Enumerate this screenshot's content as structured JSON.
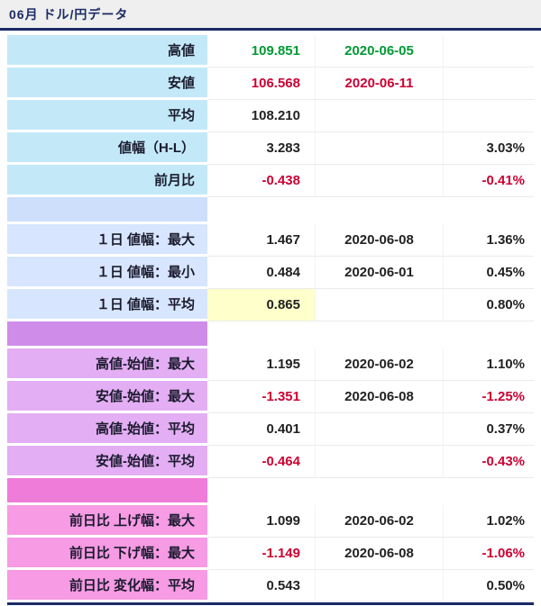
{
  "header": {
    "title": "06月 ドル/円データ"
  },
  "palette": {
    "green": "#009933",
    "red": "#cc0033",
    "navy": "#1b2a66",
    "highlight_yellow": "#ffffcc",
    "header_bg": "#efefef"
  },
  "table": {
    "sections": [
      {
        "label_bg": "#c3e9f8",
        "rows": [
          {
            "label": "高値",
            "value": "109.851",
            "value_color": "green",
            "date": "2020-06-05",
            "date_color": "green",
            "pct": ""
          },
          {
            "label": "安値",
            "value": "106.568",
            "value_color": "red",
            "date": "2020-06-11",
            "date_color": "red",
            "pct": ""
          },
          {
            "label": "平均",
            "value": "108.210",
            "date": "",
            "pct": ""
          },
          {
            "label": "値幅（H-L）",
            "value": "3.283",
            "date": "",
            "pct": "3.03%"
          },
          {
            "label": "前月比",
            "value": "-0.438",
            "value_color": "red",
            "date": "",
            "pct": "-0.41%",
            "pct_color": "red"
          }
        ]
      },
      {
        "spacer_bg": "#cddffb",
        "label_bg": "#d7e6fe",
        "rows": [
          {
            "label": "１日 値幅：最大",
            "value": "1.467",
            "date": "2020-06-08",
            "pct": "1.36%"
          },
          {
            "label": "１日 値幅：最小",
            "value": "0.484",
            "date": "2020-06-01",
            "pct": "0.45%"
          },
          {
            "label": "１日 値幅：平均",
            "value": "0.865",
            "value_highlight": true,
            "date": "",
            "pct": "0.80%"
          }
        ]
      },
      {
        "spacer_bg": "#cf8de9",
        "label_bg": "#e3aef3",
        "rows": [
          {
            "label": "高値-始値：最大",
            "value": "1.195",
            "date": "2020-06-02",
            "pct": "1.10%"
          },
          {
            "label": "安値-始値：最大",
            "value": "-1.351",
            "value_color": "red",
            "date": "2020-06-08",
            "pct": "-1.25%",
            "pct_color": "red"
          },
          {
            "label": "高値-始値：平均",
            "value": "0.401",
            "date": "",
            "pct": "0.37%"
          },
          {
            "label": "安値-始値：平均",
            "value": "-0.464",
            "value_color": "red",
            "date": "",
            "pct": "-0.43%",
            "pct_color": "red"
          }
        ]
      },
      {
        "spacer_bg": "#f07cda",
        "label_bg": "#f69be4",
        "rows": [
          {
            "label": "前日比 上げ幅：最大",
            "value": "1.099",
            "date": "2020-06-02",
            "pct": "1.02%"
          },
          {
            "label": "前日比 下げ幅：最大",
            "value": "-1.149",
            "value_color": "red",
            "date": "2020-06-08",
            "pct": "-1.06%",
            "pct_color": "red"
          },
          {
            "label": "前日比 変化幅：平均",
            "value": "0.543",
            "date": "",
            "pct": "0.50%"
          }
        ]
      }
    ]
  },
  "chart_data": {
    "type": "table",
    "title": "06月 ドル/円データ",
    "rows": [
      [
        "高値",
        109.851,
        "2020-06-05",
        null
      ],
      [
        "安値",
        106.568,
        "2020-06-11",
        null
      ],
      [
        "平均",
        108.21,
        null,
        null
      ],
      [
        "値幅（H-L）",
        3.283,
        null,
        "3.03%"
      ],
      [
        "前月比",
        -0.438,
        null,
        "-0.41%"
      ],
      [
        "１日 値幅：最大",
        1.467,
        "2020-06-08",
        "1.36%"
      ],
      [
        "１日 値幅：最小",
        0.484,
        "2020-06-01",
        "0.45%"
      ],
      [
        "１日 値幅：平均",
        0.865,
        null,
        "0.80%"
      ],
      [
        "高値-始値：最大",
        1.195,
        "2020-06-02",
        "1.10%"
      ],
      [
        "安値-始値：最大",
        -1.351,
        "2020-06-08",
        "-1.25%"
      ],
      [
        "高値-始値：平均",
        0.401,
        null,
        "0.37%"
      ],
      [
        "安値-始値：平均",
        -0.464,
        null,
        "-0.43%"
      ],
      [
        "前日比 上げ幅：最大",
        1.099,
        "2020-06-02",
        "1.02%"
      ],
      [
        "前日比 下げ幅：最大",
        -1.149,
        "2020-06-08",
        "-1.06%"
      ],
      [
        "前日比 変化幅：平均",
        0.543,
        null,
        "0.50%"
      ]
    ]
  }
}
